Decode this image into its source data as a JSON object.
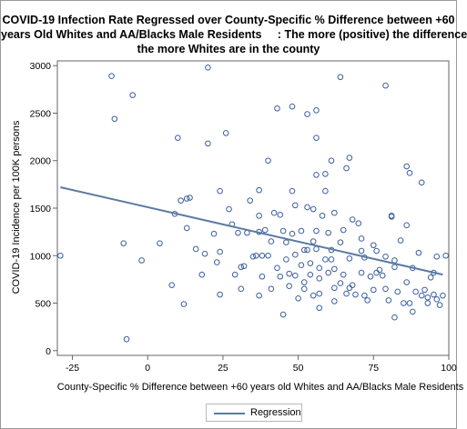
{
  "chart_data": {
    "type": "scatter",
    "title_lines": [
      "COVID-19 Infection Rate Regressed over County-Specific % Difference between +60",
      "years Old Whites and AA/Blacks Male Residents     : The more (positive) the difference",
      "the more Whites are in the county"
    ],
    "xlabel": "County-Specific % Difference between +60 years old Whites and AA/Blacks Male Residents",
    "ylabel": "COVID-19 Incidence per 100K persons",
    "xlim": [
      -30,
      100
    ],
    "ylim": [
      -50,
      3050
    ],
    "xticks": [
      -25,
      0,
      25,
      50,
      75,
      100
    ],
    "yticks": [
      0,
      500,
      1000,
      1500,
      2000,
      2500,
      3000
    ],
    "grid": false,
    "legend_position": "bottom-center",
    "legend": [
      {
        "label": "Regression",
        "color": "#5b7ba4"
      }
    ],
    "marker_color": "#3c5fa0",
    "series": [
      {
        "kind": "scatter",
        "points": [
          [
            -29,
            1000
          ],
          [
            -12,
            2890
          ],
          [
            -11,
            2440
          ],
          [
            -8,
            1130
          ],
          [
            -7,
            120
          ],
          [
            -5,
            2690
          ],
          [
            -2,
            950
          ],
          [
            4,
            1130
          ],
          [
            8,
            690
          ],
          [
            9,
            1440
          ],
          [
            10,
            2240
          ],
          [
            11,
            1580
          ],
          [
            12,
            490
          ],
          [
            13,
            1600
          ],
          [
            13,
            1290
          ],
          [
            14,
            1610
          ],
          [
            16,
            1070
          ],
          [
            18,
            800
          ],
          [
            19,
            1020
          ],
          [
            20,
            2980
          ],
          [
            20,
            2180
          ],
          [
            22,
            1230
          ],
          [
            23,
            930
          ],
          [
            24,
            1040
          ],
          [
            24,
            590
          ],
          [
            24,
            1680
          ],
          [
            26,
            2290
          ],
          [
            27,
            1490
          ],
          [
            28,
            1330
          ],
          [
            29,
            800
          ],
          [
            30,
            1240
          ],
          [
            31,
            880
          ],
          [
            31,
            650
          ],
          [
            32,
            890
          ],
          [
            33,
            1240
          ],
          [
            34,
            1580
          ],
          [
            35,
            990
          ],
          [
            36,
            1000
          ],
          [
            37,
            1690
          ],
          [
            37,
            1420
          ],
          [
            37,
            1250
          ],
          [
            37,
            580
          ],
          [
            38,
            780
          ],
          [
            38,
            1000
          ],
          [
            39,
            1270
          ],
          [
            40,
            2000
          ],
          [
            40,
            1000
          ],
          [
            41,
            1150
          ],
          [
            41,
            650
          ],
          [
            42,
            1450
          ],
          [
            43,
            2550
          ],
          [
            43,
            870
          ],
          [
            44,
            1430
          ],
          [
            44,
            780
          ],
          [
            45,
            1260
          ],
          [
            45,
            380
          ],
          [
            46,
            1140
          ],
          [
            46,
            960
          ],
          [
            47,
            810
          ],
          [
            47,
            680
          ],
          [
            48,
            2570
          ],
          [
            48,
            1680
          ],
          [
            48,
            1230
          ],
          [
            49,
            1530
          ],
          [
            49,
            1010
          ],
          [
            49,
            790
          ],
          [
            50,
            550
          ],
          [
            51,
            1260
          ],
          [
            51,
            900
          ],
          [
            52,
            1060
          ],
          [
            52,
            720
          ],
          [
            52,
            650
          ],
          [
            53,
            2490
          ],
          [
            53,
            1510
          ],
          [
            53,
            1060
          ],
          [
            54,
            920
          ],
          [
            54,
            800
          ],
          [
            55,
            1490
          ],
          [
            55,
            1150
          ],
          [
            55,
            580
          ],
          [
            56,
            2530
          ],
          [
            56,
            2240
          ],
          [
            56,
            1850
          ],
          [
            56,
            1260
          ],
          [
            56,
            1070
          ],
          [
            57,
            870
          ],
          [
            57,
            760
          ],
          [
            57,
            600
          ],
          [
            57,
            450
          ],
          [
            58,
            1420
          ],
          [
            59,
            1860
          ],
          [
            59,
            1680
          ],
          [
            59,
            960
          ],
          [
            60,
            1240
          ],
          [
            60,
            820
          ],
          [
            61,
            2000
          ],
          [
            61,
            1060
          ],
          [
            61,
            960
          ],
          [
            62,
            1450
          ],
          [
            62,
            860
          ],
          [
            62,
            660
          ],
          [
            62,
            520
          ],
          [
            64,
            2880
          ],
          [
            64,
            1140
          ],
          [
            64,
            710
          ],
          [
            65,
            1270
          ],
          [
            65,
            800
          ],
          [
            66,
            600
          ],
          [
            66,
            1920
          ],
          [
            67,
            2030
          ],
          [
            67,
            970
          ],
          [
            67,
            660
          ],
          [
            68,
            1380
          ],
          [
            68,
            690
          ],
          [
            69,
            590
          ],
          [
            70,
            1340
          ],
          [
            71,
            1180
          ],
          [
            71,
            1050
          ],
          [
            71,
            820
          ],
          [
            72,
            980
          ],
          [
            72,
            580
          ],
          [
            73,
            530
          ],
          [
            74,
            780
          ],
          [
            75,
            640
          ],
          [
            75,
            1110
          ],
          [
            76,
            1050
          ],
          [
            76,
            820
          ],
          [
            77,
            850
          ],
          [
            78,
            790
          ],
          [
            79,
            2790
          ],
          [
            79,
            990
          ],
          [
            79,
            650
          ],
          [
            80,
            530
          ],
          [
            81,
            1420
          ],
          [
            81,
            1410
          ],
          [
            82,
            880
          ],
          [
            82,
            950
          ],
          [
            82,
            350
          ],
          [
            83,
            620
          ],
          [
            84,
            1160
          ],
          [
            85,
            500
          ],
          [
            86,
            1940
          ],
          [
            86,
            1320
          ],
          [
            86,
            720
          ],
          [
            87,
            1870
          ],
          [
            87,
            500
          ],
          [
            88,
            870
          ],
          [
            88,
            410
          ],
          [
            89,
            620
          ],
          [
            90,
            1030
          ],
          [
            91,
            1770
          ],
          [
            91,
            580
          ],
          [
            92,
            640
          ],
          [
            93,
            560
          ],
          [
            93,
            500
          ],
          [
            94,
            770
          ],
          [
            95,
            820
          ],
          [
            95,
            590
          ],
          [
            96,
            990
          ],
          [
            96,
            540
          ],
          [
            97,
            480
          ],
          [
            98,
            580
          ],
          [
            99,
            1000
          ]
        ]
      },
      {
        "kind": "line",
        "name": "Regression",
        "x": [
          -29,
          98
        ],
        "y": [
          1720,
          800
        ]
      }
    ]
  }
}
